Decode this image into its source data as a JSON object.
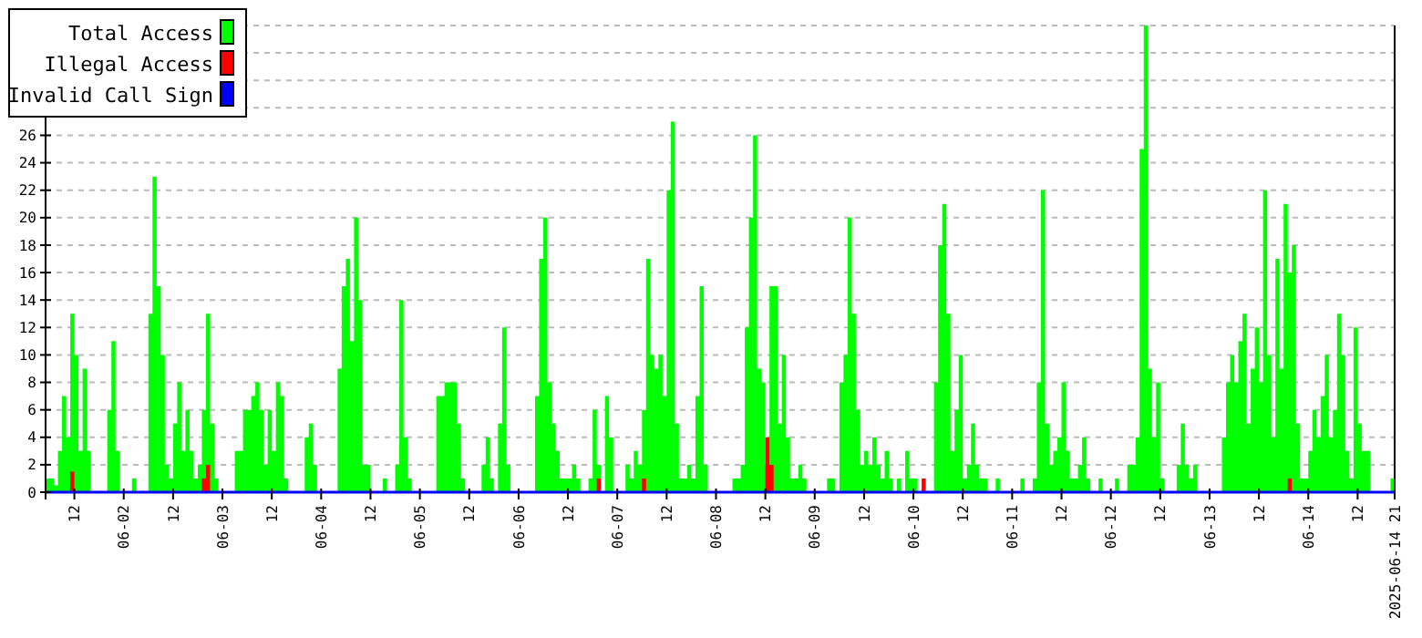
{
  "chart_data": {
    "type": "area",
    "xlim": [
      "2025-06-01T05:00",
      "2025-06-14T21:00"
    ],
    "xticks": [
      {
        "value": "2025-06-01T12:00",
        "label": "12"
      },
      {
        "value": "2025-06-02T00:00",
        "label": "06-02"
      },
      {
        "value": "2025-06-02T12:00",
        "label": "12"
      },
      {
        "value": "2025-06-03T00:00",
        "label": "06-03"
      },
      {
        "value": "2025-06-03T12:00",
        "label": "12"
      },
      {
        "value": "2025-06-04T00:00",
        "label": "06-04"
      },
      {
        "value": "2025-06-04T12:00",
        "label": "12"
      },
      {
        "value": "2025-06-05T00:00",
        "label": "06-05"
      },
      {
        "value": "2025-06-05T12:00",
        "label": "12"
      },
      {
        "value": "2025-06-06T00:00",
        "label": "06-06"
      },
      {
        "value": "2025-06-06T12:00",
        "label": "12"
      },
      {
        "value": "2025-06-07T00:00",
        "label": "06-07"
      },
      {
        "value": "2025-06-07T12:00",
        "label": "12"
      },
      {
        "value": "2025-06-08T00:00",
        "label": "06-08"
      },
      {
        "value": "2025-06-08T12:00",
        "label": "12"
      },
      {
        "value": "2025-06-09T00:00",
        "label": "06-09"
      },
      {
        "value": "2025-06-09T12:00",
        "label": "12"
      },
      {
        "value": "2025-06-10T00:00",
        "label": "06-10"
      },
      {
        "value": "2025-06-10T12:00",
        "label": "12"
      },
      {
        "value": "2025-06-11T00:00",
        "label": "06-11"
      },
      {
        "value": "2025-06-11T12:00",
        "label": "12"
      },
      {
        "value": "2025-06-12T00:00",
        "label": "06-12"
      },
      {
        "value": "2025-06-12T12:00",
        "label": "12"
      },
      {
        "value": "2025-06-13T00:00",
        "label": "06-13"
      },
      {
        "value": "2025-06-13T12:00",
        "label": "12"
      },
      {
        "value": "2025-06-14T00:00",
        "label": "06-14"
      },
      {
        "value": "2025-06-14T12:00",
        "label": "12"
      },
      {
        "value": "2025-06-14T21:00",
        "label": "2025-06-14 21"
      }
    ],
    "ylim": [
      0,
      34
    ],
    "yticks": [
      0,
      2,
      4,
      6,
      8,
      10,
      12,
      14,
      16,
      18,
      20,
      22,
      24,
      26,
      {
        "value": 28,
        "label": null
      },
      {
        "value": 30,
        "label": null
      },
      {
        "value": 32,
        "label": null
      },
      {
        "value": 34,
        "label": null
      }
    ],
    "grid": "y",
    "legend": "top left",
    "series": [
      {
        "name": "Total Access",
        "color": "#00ff00",
        "x": [
          "2025-06-01T05:00",
          "2025-06-01T07:00",
          "2025-06-01T08:00",
          "2025-06-01T09:00",
          "2025-06-01T10:00",
          "2025-06-01T11:00",
          "2025-06-01T12:00",
          "2025-06-01T13:00",
          "2025-06-01T14:00",
          "2025-06-01T15:00",
          "2025-06-01T16:00",
          "2025-06-01T19:00",
          "2025-06-01T20:00",
          "2025-06-01T21:00",
          "2025-06-01T22:00",
          "2025-06-01T23:00",
          "2025-06-02T02:00",
          "2025-06-02T03:00",
          "2025-06-02T05:00",
          "2025-06-02T06:00",
          "2025-06-02T07:00",
          "2025-06-02T08:00",
          "2025-06-02T09:00",
          "2025-06-02T10:00",
          "2025-06-02T11:00",
          "2025-06-02T12:00",
          "2025-06-02T13:00",
          "2025-06-02T14:00",
          "2025-06-02T15:00",
          "2025-06-02T16:00",
          "2025-06-02T17:00",
          "2025-06-02T18:00",
          "2025-06-02T19:00",
          "2025-06-02T20:00",
          "2025-06-02T21:00",
          "2025-06-02T22:00",
          "2025-06-02T23:00",
          "2025-06-03T02:00",
          "2025-06-03T03:00",
          "2025-06-03T05:00",
          "2025-06-03T07:00",
          "2025-06-03T08:00",
          "2025-06-03T09:00",
          "2025-06-03T10:00",
          "2025-06-03T11:00",
          "2025-06-03T12:00",
          "2025-06-03T13:00",
          "2025-06-03T14:00",
          "2025-06-03T15:00",
          "2025-06-03T16:00",
          "2025-06-03T19:00",
          "2025-06-03T20:00",
          "2025-06-03T21:00",
          "2025-06-03T22:00",
          "2025-06-03T23:00",
          "2025-06-04T03:00",
          "2025-06-04T04:00",
          "2025-06-04T05:00",
          "2025-06-04T06:00",
          "2025-06-04T07:00",
          "2025-06-04T08:00",
          "2025-06-04T09:00",
          "2025-06-04T10:00",
          "2025-06-04T11:00",
          "2025-06-04T12:00",
          "2025-06-04T14:00",
          "2025-06-04T15:00",
          "2025-06-04T16:00",
          "2025-06-04T18:00",
          "2025-06-04T19:00",
          "2025-06-04T20:00",
          "2025-06-04T21:00",
          "2025-06-04T22:00",
          "2025-06-05T03:00",
          "2025-06-05T04:00",
          "2025-06-05T06:00",
          "2025-06-05T08:00",
          "2025-06-05T09:00",
          "2025-06-05T10:00",
          "2025-06-05T11:00",
          "2025-06-05T14:00",
          "2025-06-05T15:00",
          "2025-06-05T16:00",
          "2025-06-05T17:00",
          "2025-06-05T18:00",
          "2025-06-05T19:00",
          "2025-06-05T20:00",
          "2025-06-05T21:00",
          "2025-06-05T22:00",
          "2025-06-06T03:00",
          "2025-06-06T04:00",
          "2025-06-06T05:00",
          "2025-06-06T06:00",
          "2025-06-06T07:00",
          "2025-06-06T08:00",
          "2025-06-06T09:00",
          "2025-06-06T10:00",
          "2025-06-06T12:00",
          "2025-06-06T13:00",
          "2025-06-06T14:00",
          "2025-06-06T15:00",
          "2025-06-06T17:00",
          "2025-06-06T18:00",
          "2025-06-06T19:00",
          "2025-06-06T20:00",
          "2025-06-06T21:00",
          "2025-06-06T22:00",
          "2025-06-06T23:00",
          "2025-06-07T01:00",
          "2025-06-07T02:00",
          "2025-06-07T03:00",
          "2025-06-07T04:00",
          "2025-06-07T05:00",
          "2025-06-07T06:00",
          "2025-06-07T07:00",
          "2025-06-07T08:00",
          "2025-06-07T09:00",
          "2025-06-07T10:00",
          "2025-06-07T11:00",
          "2025-06-07T12:00",
          "2025-06-07T13:00",
          "2025-06-07T14:00",
          "2025-06-07T15:00",
          "2025-06-07T16:00",
          "2025-06-07T17:00",
          "2025-06-07T18:00",
          "2025-06-07T19:00",
          "2025-06-07T20:00",
          "2025-06-07T21:00",
          "2025-06-07T22:00",
          "2025-06-08T03:00",
          "2025-06-08T04:00",
          "2025-06-08T06:00",
          "2025-06-08T07:00",
          "2025-06-08T08:00",
          "2025-06-08T09:00",
          "2025-06-08T10:00",
          "2025-06-08T11:00",
          "2025-06-08T12:00",
          "2025-06-08T13:00",
          "2025-06-08T14:00",
          "2025-06-08T15:00",
          "2025-06-08T16:00",
          "2025-06-08T17:00",
          "2025-06-08T18:00",
          "2025-06-08T19:00",
          "2025-06-08T20:00",
          "2025-06-08T21:00",
          "2025-06-08T22:00",
          "2025-06-09T02:00",
          "2025-06-09T03:00",
          "2025-06-09T05:00",
          "2025-06-09T06:00",
          "2025-06-09T07:00",
          "2025-06-09T08:00",
          "2025-06-09T09:00",
          "2025-06-09T10:00",
          "2025-06-09T11:00",
          "2025-06-09T12:00",
          "2025-06-09T13:00",
          "2025-06-09T14:00",
          "2025-06-09T15:00",
          "2025-06-09T16:00",
          "2025-06-09T17:00",
          "2025-06-09T18:00",
          "2025-06-09T19:00",
          "2025-06-09T20:00",
          "2025-06-09T21:00",
          "2025-06-09T22:00",
          "2025-06-09T23:00",
          "2025-06-10T01:00",
          "2025-06-10T04:00",
          "2025-06-10T05:00",
          "2025-06-10T06:00",
          "2025-06-10T07:00",
          "2025-06-10T08:00",
          "2025-06-10T09:00",
          "2025-06-10T10:00",
          "2025-06-10T11:00",
          "2025-06-10T12:00",
          "2025-06-10T13:00",
          "2025-06-10T14:00",
          "2025-06-10T15:00",
          "2025-06-10T16:00",
          "2025-06-10T17:00",
          "2025-06-10T18:00",
          "2025-06-10T20:00",
          "2025-06-10T21:00",
          "2025-06-11T01:00",
          "2025-06-11T02:00",
          "2025-06-11T03:00",
          "2025-06-11T05:00",
          "2025-06-11T06:00",
          "2025-06-11T07:00",
          "2025-06-11T08:00",
          "2025-06-11T09:00",
          "2025-06-11T10:00",
          "2025-06-11T11:00",
          "2025-06-11T12:00",
          "2025-06-11T13:00",
          "2025-06-11T14:00",
          "2025-06-11T15:00",
          "2025-06-11T16:00",
          "2025-06-11T17:00",
          "2025-06-11T18:00",
          "2025-06-11T19:00",
          "2025-06-11T21:00",
          "2025-06-11T22:00",
          "2025-06-12T01:00",
          "2025-06-12T02:00",
          "2025-06-12T04:00",
          "2025-06-12T05:00",
          "2025-06-12T06:00",
          "2025-06-12T07:00",
          "2025-06-12T08:00",
          "2025-06-12T09:00",
          "2025-06-12T10:00",
          "2025-06-12T11:00",
          "2025-06-12T12:00",
          "2025-06-12T13:00",
          "2025-06-12T15:00",
          "2025-06-12T16:00",
          "2025-06-12T17:00",
          "2025-06-12T18:00",
          "2025-06-12T19:00",
          "2025-06-12T20:00",
          "2025-06-12T21:00",
          "2025-06-13T02:00",
          "2025-06-13T03:00",
          "2025-06-13T04:00",
          "2025-06-13T05:00",
          "2025-06-13T06:00",
          "2025-06-13T07:00",
          "2025-06-13T08:00",
          "2025-06-13T09:00",
          "2025-06-13T10:00",
          "2025-06-13T11:00",
          "2025-06-13T12:00",
          "2025-06-13T13:00",
          "2025-06-13T14:00",
          "2025-06-13T15:00",
          "2025-06-13T16:00",
          "2025-06-13T17:00",
          "2025-06-13T18:00",
          "2025-06-13T19:00",
          "2025-06-13T20:00",
          "2025-06-13T21:00",
          "2025-06-13T22:00",
          "2025-06-14T00:00",
          "2025-06-14T01:00",
          "2025-06-14T02:00",
          "2025-06-14T03:00",
          "2025-06-14T04:00",
          "2025-06-14T05:00",
          "2025-06-14T06:00",
          "2025-06-14T07:00",
          "2025-06-14T08:00",
          "2025-06-14T09:00",
          "2025-06-14T10:00",
          "2025-06-14T11:00",
          "2025-06-14T12:00",
          "2025-06-14T13:00",
          "2025-06-14T14:00",
          "2025-06-14T15:00",
          "2025-06-14T19:00",
          "2025-06-14T20:00",
          "2025-06-14T21:00"
        ],
        "values": [
          1,
          0.5,
          3,
          7,
          4,
          13,
          10,
          3,
          9,
          3,
          0,
          0,
          6,
          11,
          3,
          0,
          1,
          0,
          0,
          13,
          23,
          15,
          10,
          2,
          1,
          5,
          8,
          3,
          6,
          3,
          1,
          2,
          6,
          13,
          5,
          1,
          0,
          0,
          3,
          6,
          7,
          8,
          6,
          2,
          6,
          3,
          8,
          7,
          1,
          0,
          0,
          4,
          5,
          2,
          0,
          0,
          9,
          15,
          17,
          11,
          20,
          14,
          2,
          2,
          0,
          0,
          1,
          0,
          2,
          14,
          4,
          1,
          0,
          0,
          7,
          8,
          8,
          5,
          1,
          0,
          0,
          2,
          4,
          1,
          0,
          5,
          12,
          2,
          0,
          0,
          7,
          17,
          20,
          8,
          5,
          3,
          1,
          1,
          2,
          1,
          0,
          1,
          6,
          2,
          0,
          7,
          4,
          0,
          0,
          2,
          1,
          3,
          2,
          6,
          17,
          10,
          9,
          10,
          7,
          22,
          27,
          5,
          1,
          1,
          2,
          1,
          7,
          15,
          2,
          0,
          0,
          1,
          2,
          12,
          20,
          26,
          9,
          8,
          2,
          15,
          15,
          5,
          10,
          4,
          1,
          1,
          2,
          1,
          0,
          0,
          1,
          0,
          8,
          10,
          20,
          13,
          6,
          2,
          3,
          2,
          4,
          2,
          1,
          3,
          1,
          0,
          1,
          0,
          3,
          1,
          0,
          0,
          8,
          18,
          21,
          13,
          3,
          6,
          10,
          1,
          2,
          5,
          2,
          1,
          1,
          0,
          1,
          0,
          0,
          1,
          0,
          1,
          8,
          22,
          5,
          2,
          3,
          4,
          8,
          3,
          1,
          1,
          2,
          4,
          1,
          0,
          1,
          0,
          1,
          0,
          2,
          2,
          4,
          25,
          34,
          9,
          4,
          8,
          1,
          0,
          0,
          2,
          5,
          2,
          1,
          2,
          0,
          0,
          4,
          8,
          10,
          8,
          11,
          13,
          5,
          9,
          12,
          8,
          22,
          10,
          4,
          17,
          9,
          21,
          16,
          18,
          5,
          1,
          3,
          6,
          4,
          7,
          10,
          4,
          6,
          13,
          10,
          3,
          1,
          12,
          5,
          3,
          3,
          0,
          0,
          1,
          1
        ]
      },
      {
        "name": "Illegal Access",
        "color": "#ff0000",
        "x": [
          "2025-06-01T05:00",
          "2025-06-01T10:00",
          "2025-06-01T11:00",
          "2025-06-01T12:00",
          "2025-06-02T18:00",
          "2025-06-02T19:00",
          "2025-06-02T20:00",
          "2025-06-02T21:00",
          "2025-06-06T18:00",
          "2025-06-06T19:00",
          "2025-06-06T20:00",
          "2025-06-07T05:00",
          "2025-06-07T06:00",
          "2025-06-07T07:00",
          "2025-06-08T11:00",
          "2025-06-08T12:00",
          "2025-06-08T13:00",
          "2025-06-08T14:00",
          "2025-06-10T01:00",
          "2025-06-10T02:00",
          "2025-06-10T03:00",
          "2025-06-13T18:00",
          "2025-06-13T19:00",
          "2025-06-13T20:00",
          "2025-06-14T21:00"
        ],
        "values": [
          0,
          0,
          1.5,
          0,
          0,
          1,
          2,
          0,
          0,
          1,
          0,
          0,
          1,
          0,
          0,
          4,
          2,
          0,
          0,
          1,
          0,
          0,
          1,
          0,
          0
        ]
      },
      {
        "name": "Invalid Call Sign",
        "type": "line",
        "color": "#0000ff",
        "x": [
          "2025-06-01T05:00",
          "2025-06-14T21:00"
        ],
        "values": [
          0,
          0
        ]
      }
    ]
  }
}
